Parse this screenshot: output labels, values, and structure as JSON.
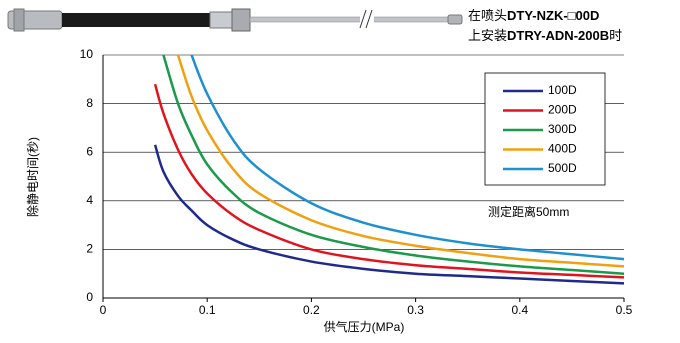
{
  "header": {
    "line1": [
      "在喷头",
      "DTY-NZK-□00D"
    ],
    "line2": [
      "上安装",
      "DTRY-ADN-200B",
      "时"
    ]
  },
  "chart_data": {
    "type": "line",
    "xlabel": "供气压力(MPa)",
    "ylabel": "除静电时间(秒)",
    "annotation": "测定距离50mm",
    "x": [
      0.05,
      0.058,
      0.072,
      0.085,
      0.1,
      0.125,
      0.15,
      0.2,
      0.25,
      0.3,
      0.35,
      0.4,
      0.45,
      0.5
    ],
    "series": [
      {
        "name": "100D",
        "color": "#1f2a8c",
        "values": [
          6.3,
          5.2,
          4.2,
          3.6,
          3.0,
          2.4,
          2.0,
          1.5,
          1.2,
          1.0,
          0.9,
          0.8,
          0.7,
          0.6
        ]
      },
      {
        "name": "200D",
        "color": "#e0141e",
        "values": [
          8.8,
          7.6,
          6.1,
          5.1,
          4.3,
          3.4,
          2.8,
          2.0,
          1.6,
          1.35,
          1.2,
          1.05,
          0.95,
          0.85
        ]
      },
      {
        "name": "300D",
        "color": "#1a9a4a",
        "values": [
          null,
          10,
          8.0,
          6.7,
          5.5,
          4.3,
          3.5,
          2.6,
          2.1,
          1.75,
          1.5,
          1.3,
          1.15,
          1.0
        ]
      },
      {
        "name": "400D",
        "color": "#f0a010",
        "values": [
          null,
          null,
          10,
          8.3,
          6.9,
          5.3,
          4.3,
          3.2,
          2.55,
          2.15,
          1.85,
          1.6,
          1.45,
          1.3
        ]
      },
      {
        "name": "500D",
        "color": "#1e90d0",
        "values": [
          null,
          null,
          null,
          10,
          8.4,
          6.5,
          5.3,
          3.9,
          3.1,
          2.6,
          2.25,
          2.0,
          1.8,
          1.6
        ]
      }
    ],
    "xlim": [
      0,
      0.5
    ],
    "ylim": [
      0,
      10
    ],
    "xticks": [
      0,
      0.1,
      0.2,
      0.3,
      0.4,
      0.5
    ],
    "yticks": [
      0,
      2,
      4,
      6,
      8,
      10
    ],
    "grid": true
  }
}
